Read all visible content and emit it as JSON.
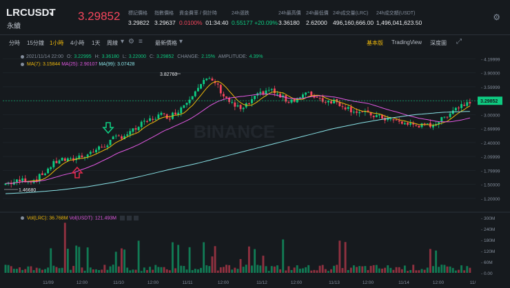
{
  "header": {
    "symbol": "LRCUSDT",
    "contract_type": "永續",
    "last_price": "3.29852",
    "stats": [
      {
        "label": "標記價格",
        "value": "3.29822",
        "color": "white"
      },
      {
        "label": "指數價格",
        "value": "3.29637",
        "color": "white"
      },
      {
        "label": "資金費率 / 倒計時",
        "value_a": "0.0100%",
        "value_b": "01:34:40",
        "color": "split"
      },
      {
        "label": "24h漲跌",
        "value": "0.55177 +20.09%",
        "color": "green"
      },
      {
        "label": "24h最高價",
        "value": "3.36180",
        "color": "white"
      },
      {
        "label": "24h最低價",
        "value": "2.62000",
        "color": "white"
      },
      {
        "label": "24h成交量(LRC)",
        "value": "496,160,666.00",
        "color": "white"
      },
      {
        "label": "24h成交額(USDT)",
        "value": "1,496,041,623.50",
        "color": "white"
      }
    ]
  },
  "toolbar": {
    "timeframes": [
      "分時",
      "15分鐘",
      "1小時",
      "4小時",
      "1天",
      "周線"
    ],
    "active_timeframe": "1小時",
    "price_type": "最新價格",
    "views": [
      "基本版",
      "TradingView",
      "深度圖"
    ],
    "active_view": "基本版"
  },
  "legend": {
    "date": "2021/11/14 22:00",
    "open_label": "O:",
    "open": "3.22995",
    "high_label": "H:",
    "high": "3.36180",
    "low_label": "L:",
    "low": "3.22000",
    "close_label": "C:",
    "close": "3.29852",
    "change_label": "CHANGE:",
    "change": "2.15%",
    "amplitude_label": "AMPLITUDE:",
    "amplitude": "4.39%",
    "ma7": "MA(7): 3.15844",
    "ma25": "MA(25): 2.90107",
    "ma99": "MA(99): 3.07428",
    "vol_lrc": "Vol(LRC): 36.768M",
    "vol_usdt": "Vol(USDT): 121.493M"
  },
  "colors": {
    "up": "#0ecb81",
    "down": "#f6465d",
    "ma7": "#f0b90b",
    "ma25": "#e459e4",
    "ma99": "#8be5e9",
    "accent": "#f0b90b"
  },
  "watermark": "BINANCE",
  "chart_data": {
    "type": "candlestick",
    "price_axis_ticks": [
      "4.19999",
      "3.90000",
      "3.59999",
      "3.30000",
      "3.00000",
      "2.69999",
      "2.40000",
      "2.09999",
      "1.79999",
      "1.50000",
      "1.20000"
    ],
    "volume_axis_ticks": [
      "300M",
      "240M",
      "180M",
      "120M",
      "60M",
      "0.00"
    ],
    "x_axis_ticks": [
      "11/09",
      "12:00",
      "11/10",
      "12:00",
      "11/11",
      "12:00",
      "11/12",
      "12:00",
      "11/13",
      "12:00",
      "11/14",
      "12:00",
      "11/"
    ],
    "annotations": {
      "high_label": "3.82760",
      "low_label": "1.46680",
      "current_price": "3.29852"
    },
    "close_anchors": [
      1.52,
      1.55,
      1.6,
      1.58,
      1.7,
      1.9,
      2.05,
      2.0,
      2.1,
      2.15,
      2.25,
      2.35,
      2.5,
      2.55,
      2.65,
      2.8,
      2.9,
      3.0,
      2.95,
      3.1,
      3.3,
      3.6,
      3.75,
      3.7,
      3.4,
      3.2,
      3.1,
      3.3,
      3.45,
      3.55,
      3.4,
      3.3,
      3.35,
      3.45,
      3.4,
      3.3,
      3.3,
      3.2,
      3.1,
      3.05,
      3.0,
      2.95,
      2.9,
      2.85,
      2.8,
      2.78,
      2.75,
      2.8,
      2.9,
      3.1,
      3.2,
      3.3
    ],
    "ma99_anchors": [
      1.3,
      1.33,
      1.38,
      1.45,
      1.55,
      1.68,
      1.82,
      1.95,
      2.1,
      2.25,
      2.4,
      2.55,
      2.7,
      2.82,
      2.92,
      3.0,
      3.05,
      3.07
    ]
  }
}
